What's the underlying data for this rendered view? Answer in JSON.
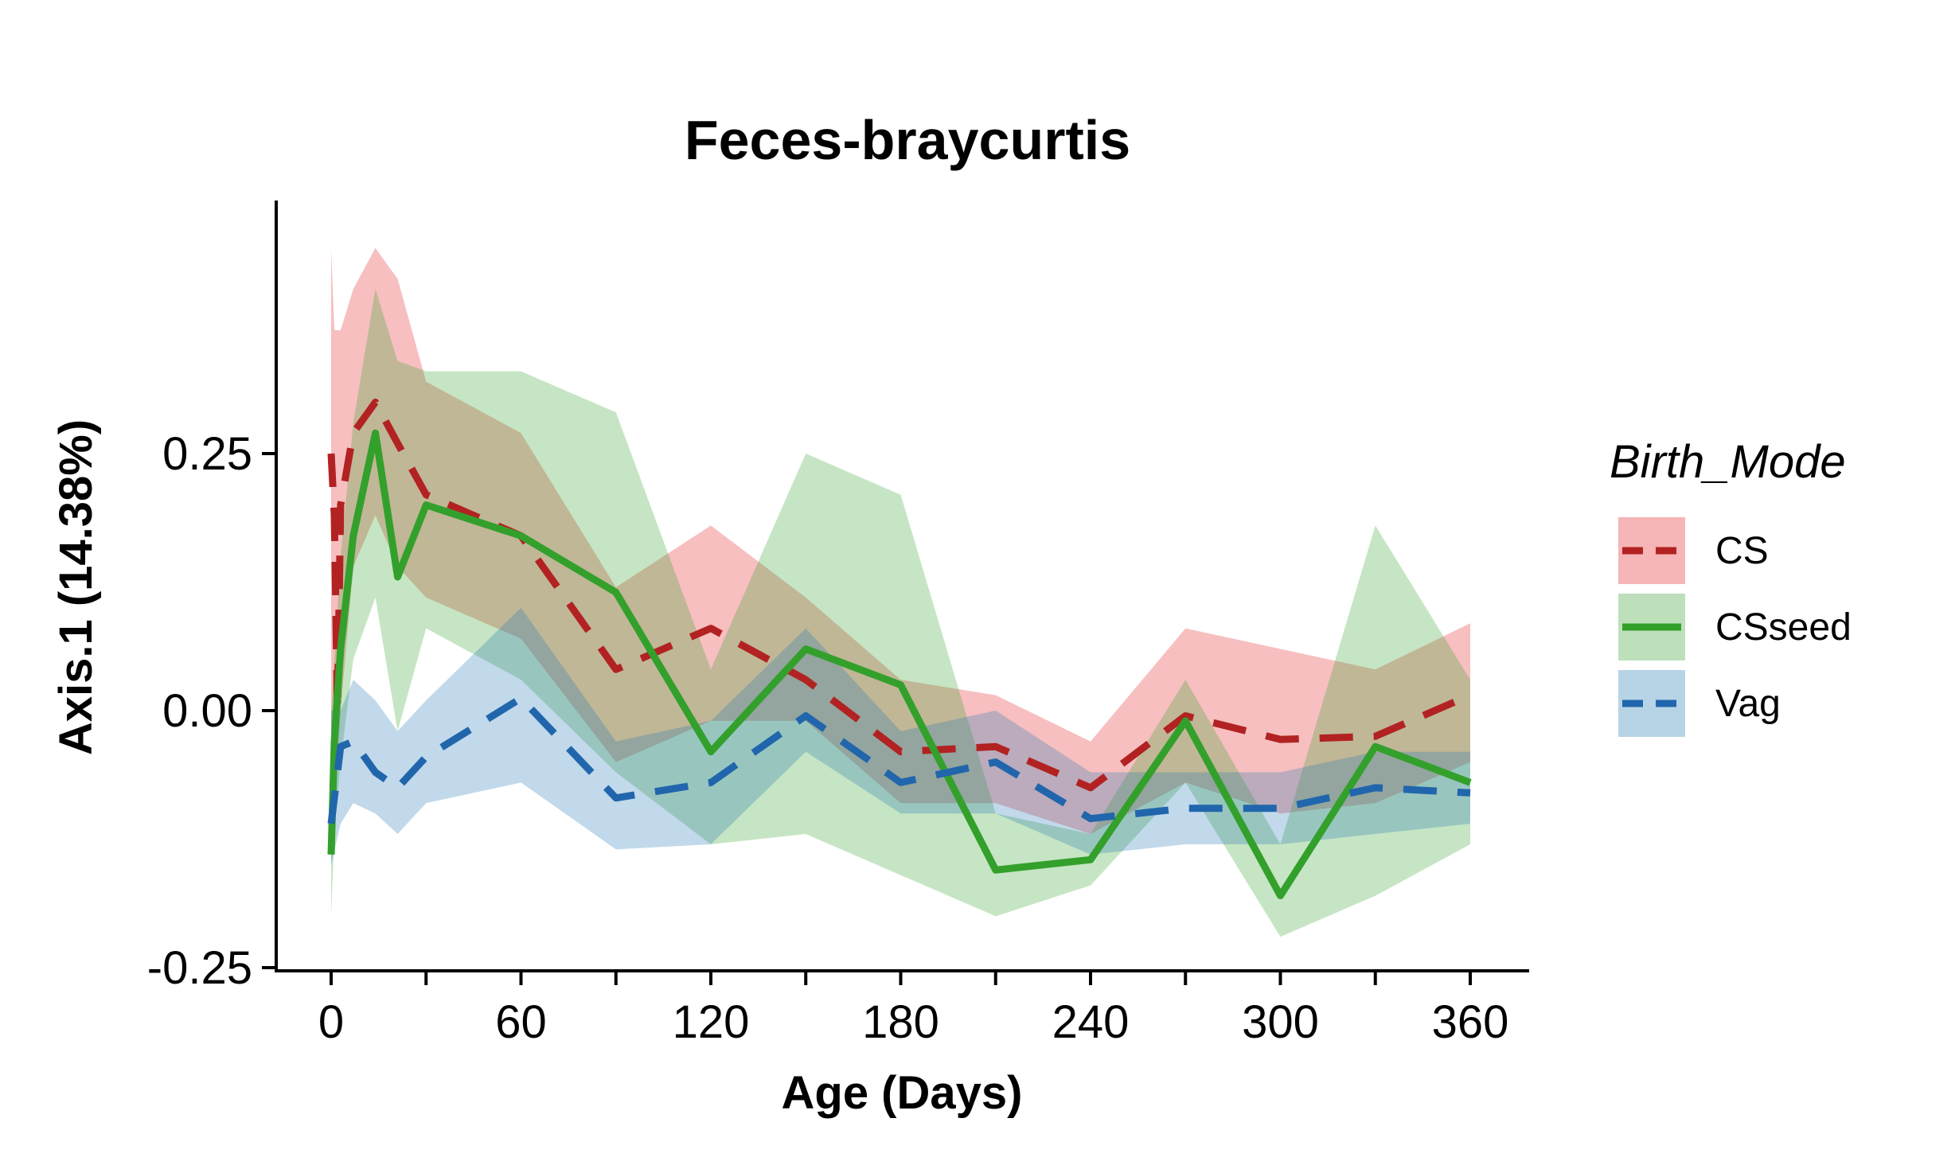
{
  "chart_data": {
    "type": "line",
    "title": "Feces-braycurtis",
    "xlabel": "Age (Days)",
    "ylabel": "Axis.1 (14.38%)",
    "xlim": [
      -8,
      377
    ],
    "ylim": [
      -0.25,
      0.5
    ],
    "x_ticks": [
      0,
      60,
      120,
      180,
      240,
      300,
      360
    ],
    "x_minor_ticks": [
      30,
      90,
      150,
      210,
      270,
      330
    ],
    "y_ticks": [
      -0.25,
      0.0,
      0.25
    ],
    "y_tick_labels": [
      "-0.25",
      "0.00",
      "0.25"
    ],
    "legend": {
      "title": "Birth_Mode",
      "position": "right"
    },
    "grid": false,
    "series": [
      {
        "name": "CS",
        "color": "#E31A1C",
        "line_color": "#B22222",
        "dash": "dashed",
        "x": [
          0,
          1,
          2,
          3,
          7,
          14,
          21,
          30,
          60,
          90,
          120,
          150,
          180,
          210,
          240,
          270,
          300,
          330,
          360
        ],
        "y": [
          0.25,
          0.19,
          0.0,
          0.2,
          0.27,
          0.3,
          0.26,
          0.21,
          0.17,
          0.04,
          0.08,
          0.03,
          -0.04,
          -0.035,
          -0.075,
          -0.005,
          -0.028,
          -0.025,
          0.015
        ],
        "lower": [
          -0.05,
          -0.05,
          -0.05,
          0.0,
          0.14,
          0.19,
          0.14,
          0.11,
          0.07,
          -0.05,
          -0.01,
          -0.01,
          -0.09,
          -0.09,
          -0.12,
          -0.07,
          -0.1,
          -0.09,
          -0.05
        ],
        "upper": [
          0.45,
          0.37,
          0.37,
          0.37,
          0.41,
          0.45,
          0.42,
          0.32,
          0.27,
          0.12,
          0.18,
          0.11,
          0.03,
          0.015,
          -0.03,
          0.08,
          0.06,
          0.04,
          0.085
        ]
      },
      {
        "name": "CSseed",
        "color": "#33A02C",
        "line_color": "#33A02C",
        "dash": "solid",
        "x": [
          0,
          1,
          3,
          7,
          14,
          21,
          30,
          60,
          90,
          120,
          150,
          180,
          210,
          240,
          270,
          300,
          330,
          360
        ],
        "y": [
          -0.14,
          -0.03,
          0.06,
          0.17,
          0.27,
          0.13,
          0.2,
          0.17,
          0.115,
          -0.04,
          0.06,
          0.025,
          -0.155,
          -0.145,
          -0.01,
          -0.18,
          -0.035,
          -0.07
        ],
        "lower": [
          -0.2,
          -0.12,
          -0.05,
          0.05,
          0.11,
          -0.02,
          0.08,
          0.03,
          -0.06,
          -0.13,
          -0.12,
          -0.16,
          -0.2,
          -0.17,
          -0.07,
          -0.22,
          -0.18,
          -0.13
        ],
        "upper": [
          0.0,
          0.05,
          0.15,
          0.28,
          0.41,
          0.34,
          0.33,
          0.33,
          0.29,
          0.04,
          0.25,
          0.21,
          -0.1,
          -0.12,
          0.03,
          -0.13,
          0.18,
          0.03
        ]
      },
      {
        "name": "Vag",
        "color": "#1F78B4",
        "line_color": "#2166AC",
        "dash": "dashed",
        "x": [
          0,
          3,
          7,
          14,
          21,
          30,
          60,
          90,
          120,
          150,
          180,
          210,
          240,
          270,
          300,
          330,
          360
        ],
        "y": [
          -0.11,
          -0.035,
          -0.03,
          -0.06,
          -0.075,
          -0.045,
          0.012,
          -0.085,
          -0.07,
          -0.005,
          -0.07,
          -0.05,
          -0.105,
          -0.095,
          -0.095,
          -0.075,
          -0.08
        ],
        "lower": [
          -0.15,
          -0.11,
          -0.09,
          -0.1,
          -0.12,
          -0.09,
          -0.07,
          -0.135,
          -0.13,
          -0.04,
          -0.1,
          -0.1,
          -0.14,
          -0.13,
          -0.13,
          -0.12,
          -0.11
        ],
        "upper": [
          0.0,
          0.0,
          0.03,
          0.01,
          -0.02,
          0.01,
          0.1,
          -0.03,
          -0.01,
          0.08,
          -0.02,
          0.0,
          -0.06,
          -0.06,
          -0.06,
          -0.04,
          -0.04
        ]
      }
    ]
  }
}
